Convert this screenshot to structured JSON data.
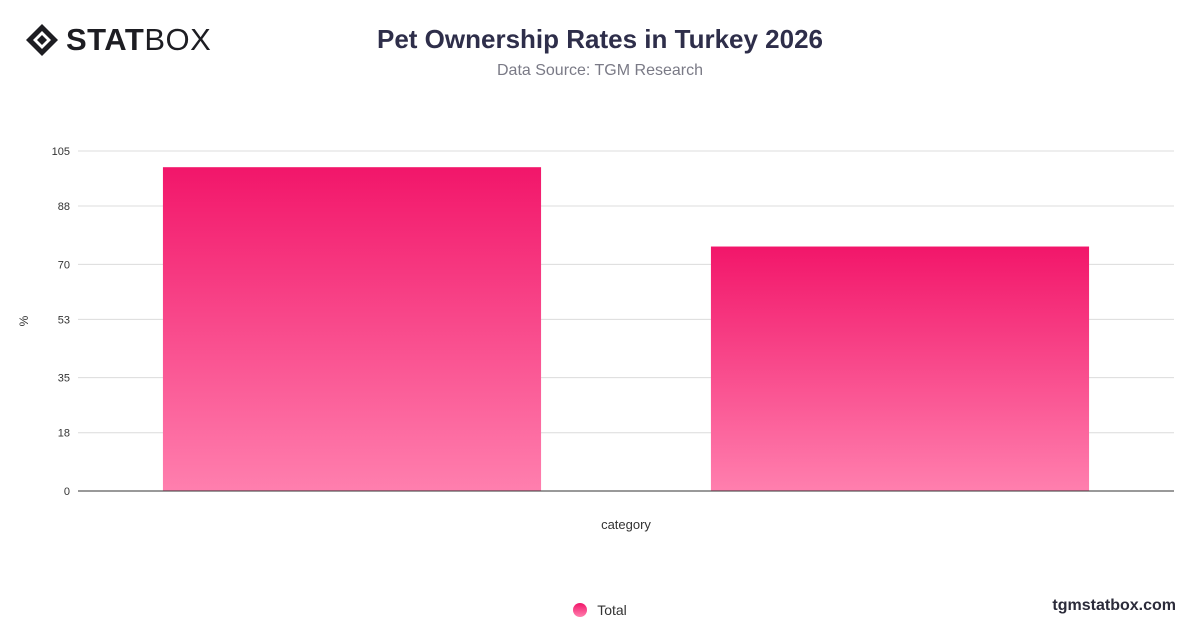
{
  "brand": {
    "logo_bold": "STAT",
    "logo_light": "BOX",
    "site": "tgmstatbox.com"
  },
  "header": {
    "title": "Pet Ownership Rates in Turkey 2026",
    "subtitle": "Data Source: TGM Research"
  },
  "chart_data": {
    "type": "bar",
    "categories": [
      "",
      ""
    ],
    "series": [
      {
        "name": "Total",
        "values": [
          100,
          75.5
        ]
      }
    ],
    "ylabel": "%",
    "xlabel": "category",
    "ylim": [
      0,
      105
    ],
    "yticks": [
      0,
      18,
      35,
      53,
      70,
      88,
      105
    ],
    "grid": true,
    "legend": "bottom-center",
    "colors": {
      "bar_top": "#f2166a",
      "bar_bottom": "#ff7fae",
      "grid": "#dcdcdc",
      "axis": "#333333"
    }
  }
}
